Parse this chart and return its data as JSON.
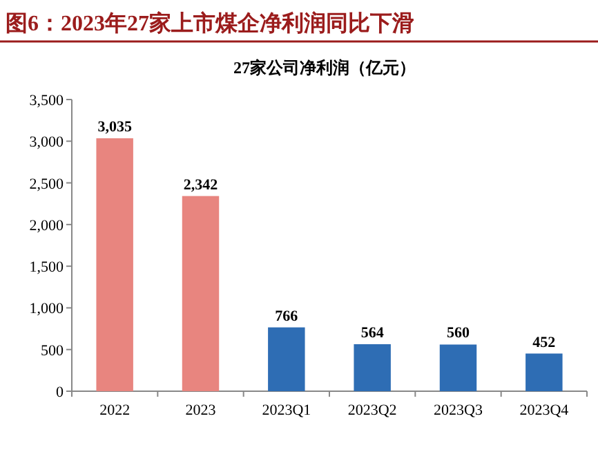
{
  "chart_data": {
    "type": "bar",
    "title": "图6：2023年27家上市煤企净利润同比下滑",
    "subtitle": "27家公司净利润（亿元）",
    "categories": [
      "2022",
      "2023",
      "2023Q1",
      "2023Q2",
      "2023Q3",
      "2023Q4"
    ],
    "values": [
      3035,
      2342,
      766,
      564,
      560,
      452
    ],
    "colors": [
      "#e8857f",
      "#e8857f",
      "#2e6db4",
      "#2e6db4",
      "#2e6db4",
      "#2e6db4"
    ],
    "value_labels": [
      "3,035",
      "2,342",
      "766",
      "564",
      "560",
      "452"
    ],
    "ylim": [
      0,
      3500
    ],
    "yticks": [
      0,
      {
        "value": 500,
        "label": "500"
      },
      {
        "value": 1000,
        "label": "1,000"
      },
      {
        "value": 1500,
        "label": "1,500"
      },
      {
        "value": 2000,
        "label": "2,000"
      },
      {
        "value": 2500,
        "label": "2,500"
      },
      {
        "value": 3000,
        "label": "3,000"
      },
      {
        "value": 3500,
        "label": "3,500"
      }
    ],
    "grid": false
  }
}
